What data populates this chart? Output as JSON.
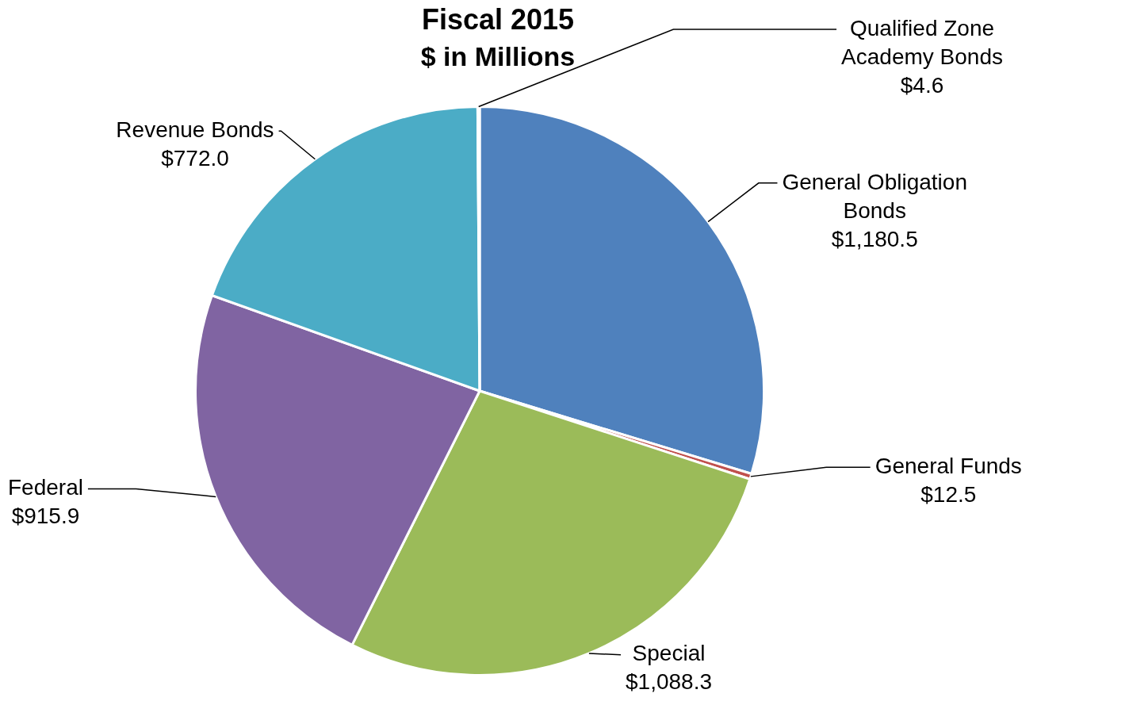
{
  "chart_data": {
    "type": "pie",
    "title": "Fiscal 2015",
    "subtitle": "$ in Millions",
    "categories": [
      "General Obligation Bonds",
      "General Funds",
      "Special",
      "Federal",
      "Revenue Bonds",
      "Qualified Zone Academy Bonds"
    ],
    "values": [
      1180.5,
      12.5,
      1088.3,
      915.9,
      772.0,
      4.6
    ],
    "value_labels": [
      "$1,180.5",
      "$12.5",
      "$1,088.3",
      "$915.9",
      "$772.0",
      "$4.6"
    ],
    "colors": [
      "#4f81bd",
      "#c0504d",
      "#9bbb59",
      "#8064a2",
      "#4bacc6",
      "#f79646"
    ],
    "legend": false
  }
}
